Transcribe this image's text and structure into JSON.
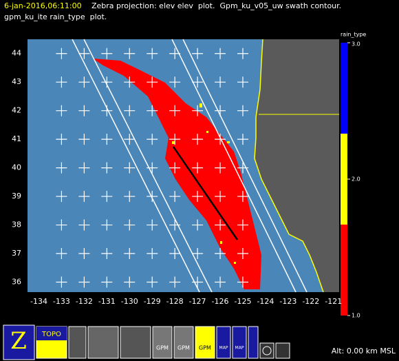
{
  "header": {
    "timestamp": "6-jan-2016,06:11:00",
    "line1": "Zebra projection: elev elev  plot.  Gpm_ku_v05_uw swath contour.",
    "line2": "gpm_ku_ite rain_type  plot."
  },
  "map": {
    "xlim": [
      -134.5,
      -120.75
    ],
    "ylim": [
      35.65,
      44.5
    ],
    "xticks": [
      -134,
      -133,
      -132,
      -131,
      -130,
      -129,
      -128,
      -127,
      -126,
      -125,
      -124,
      -123,
      -122,
      -121
    ],
    "yticks": [
      36,
      37,
      38,
      39,
      40,
      41,
      42,
      43,
      44
    ]
  },
  "colorbar": {
    "title": "rain_type",
    "lim": [
      1,
      3
    ],
    "ticks": [
      {
        "value": 1,
        "label": "1.0"
      },
      {
        "value": 2,
        "label": "2.0"
      },
      {
        "value": 3,
        "label": "3.0"
      }
    ],
    "colors": [
      "#ff0000",
      "#ffff00",
      "#0000ff"
    ]
  },
  "toolbar": {
    "labels": [
      "TOPO",
      "GPM",
      "GPM",
      "GPM",
      "MAP",
      "MAP"
    ]
  },
  "status": "Alt: 0.00 km MSL"
}
